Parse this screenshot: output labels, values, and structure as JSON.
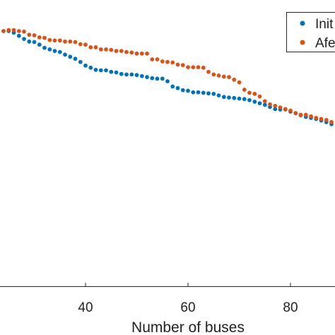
{
  "chart_data": {
    "type": "scatter",
    "xlabel": "Number of buses",
    "xticks": [
      40,
      60,
      80
    ],
    "grid": false,
    "legend_placement": "top-right",
    "series": [
      {
        "name": "Init",
        "color": "#0072BD",
        "marker": "circle",
        "x": [
          24,
          25,
          26,
          27,
          28,
          29,
          30,
          31,
          32,
          33,
          34,
          35,
          36,
          37,
          38,
          39,
          40,
          41,
          42,
          43,
          44,
          45,
          46,
          47,
          48,
          49,
          50,
          51,
          52,
          53,
          54,
          55,
          56,
          57,
          58,
          59,
          60,
          61,
          62,
          63,
          64,
          65,
          66,
          67,
          68,
          69,
          70,
          71,
          72,
          73,
          74,
          75,
          76,
          77,
          78,
          79,
          80,
          81,
          82,
          83,
          84,
          85,
          86,
          87,
          88
        ],
        "y": [
          1.0,
          1.0,
          0.997,
          0.991,
          0.985,
          0.98,
          0.979,
          0.974,
          0.968,
          0.965,
          0.962,
          0.96,
          0.955,
          0.951,
          0.947,
          0.941,
          0.934,
          0.93,
          0.926,
          0.925,
          0.925,
          0.922,
          0.921,
          0.918,
          0.917,
          0.917,
          0.916,
          0.914,
          0.912,
          0.91,
          0.909,
          0.909,
          0.904,
          0.894,
          0.891,
          0.887,
          0.886,
          0.883,
          0.883,
          0.882,
          0.881,
          0.88,
          0.877,
          0.874,
          0.873,
          0.872,
          0.871,
          0.87,
          0.868,
          0.865,
          0.862,
          0.859,
          0.855,
          0.851,
          0.85,
          0.85,
          0.846,
          0.843,
          0.839,
          0.836,
          0.834,
          0.832,
          0.829,
          0.826,
          0.822
        ]
      },
      {
        "name": "Afe",
        "color": "#D95319",
        "marker": "circle",
        "x": [
          24,
          25,
          26,
          27,
          28,
          29,
          30,
          31,
          32,
          33,
          34,
          35,
          36,
          37,
          38,
          39,
          40,
          41,
          42,
          43,
          44,
          45,
          46,
          47,
          48,
          49,
          50,
          51,
          52,
          53,
          54,
          55,
          56,
          57,
          58,
          59,
          60,
          61,
          62,
          63,
          64,
          65,
          66,
          67,
          68,
          69,
          70,
          71,
          72,
          73,
          74,
          75,
          76,
          77,
          78,
          79,
          80,
          81,
          82,
          83,
          84,
          85,
          86,
          87,
          88
        ],
        "y": [
          1.0,
          1.002,
          1.002,
          1.0,
          0.999,
          0.993,
          0.992,
          0.988,
          0.987,
          0.983,
          0.982,
          0.982,
          0.98,
          0.98,
          0.979,
          0.975,
          0.974,
          0.969,
          0.969,
          0.965,
          0.965,
          0.964,
          0.962,
          0.962,
          0.96,
          0.959,
          0.957,
          0.957,
          0.957,
          0.946,
          0.946,
          0.942,
          0.941,
          0.94,
          0.936,
          0.935,
          0.931,
          0.931,
          0.931,
          0.93,
          0.922,
          0.917,
          0.915,
          0.913,
          0.912,
          0.907,
          0.902,
          0.888,
          0.882,
          0.88,
          0.875,
          0.866,
          0.86,
          0.857,
          0.854,
          0.851,
          0.848,
          0.843,
          0.84,
          0.84,
          0.837,
          0.834,
          0.832,
          0.83,
          0.826
        ]
      }
    ]
  }
}
